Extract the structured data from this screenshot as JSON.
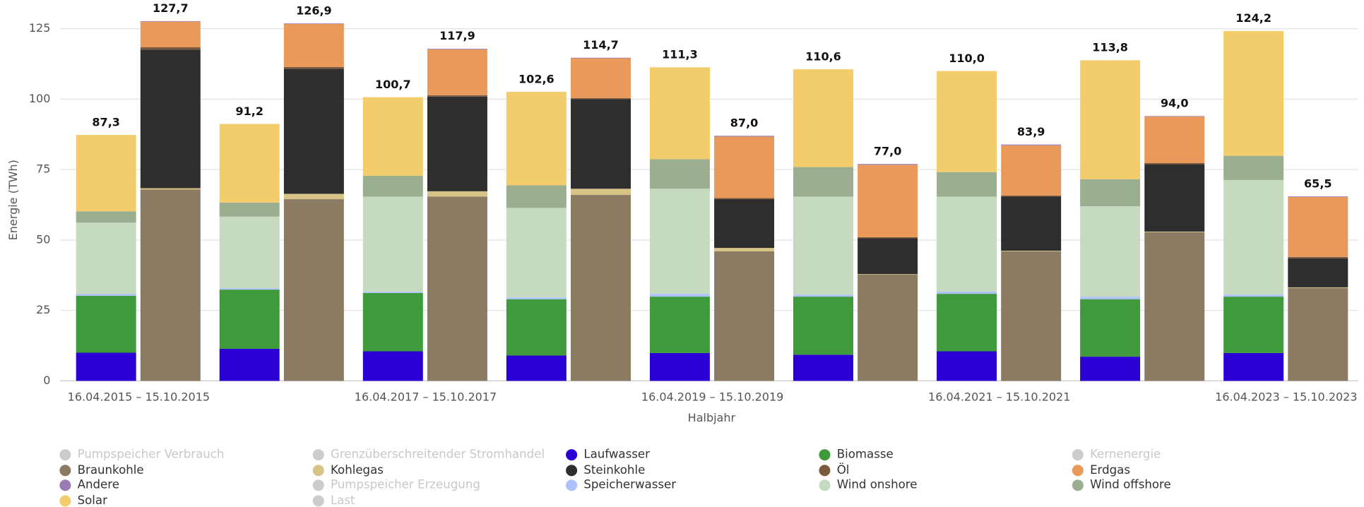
{
  "chart_data": {
    "type": "stacked_bar",
    "y_label": "Energie (TWh)",
    "x_label": "Halbjahr",
    "categories": [
      "16.04.2015 – 15.10.2015",
      null,
      "16.04.2017 – 15.10.2017",
      null,
      "16.04.2019 – 15.10.2019",
      null,
      "16.04.2021 – 15.10.2021",
      null,
      "16.04.2023 – 15.10.2023"
    ],
    "ylim": [
      0,
      125
    ],
    "yticks": [
      0,
      25,
      50,
      75,
      100,
      125
    ],
    "grid": true,
    "legend": "bottom",
    "series": [
      {
        "name": "Laufwasser",
        "color": "#2a00d4",
        "stack": 0,
        "values": [
          10.0,
          11.4,
          10.5,
          9.0,
          9.9,
          9.3,
          10.5,
          8.6,
          9.9
        ]
      },
      {
        "name": "Biomasse",
        "color": "#3e9a3a",
        "stack": 0,
        "values": [
          20.2,
          21.0,
          20.7,
          20.0,
          20.0,
          20.6,
          20.4,
          20.4,
          20.0
        ]
      },
      {
        "name": "Speicherwasser",
        "color": "#adc0ff",
        "stack": 0,
        "values": [
          0.6,
          0.5,
          0.4,
          0.6,
          1.0,
          0.7,
          0.8,
          0.8,
          0.7
        ]
      },
      {
        "name": "Wind onshore",
        "color": "#c6dac0",
        "stack": 0,
        "values": [
          25.4,
          25.4,
          33.8,
          31.8,
          37.3,
          34.8,
          33.7,
          32.2,
          40.7
        ]
      },
      {
        "name": "Wind offshore",
        "color": "#9cae90",
        "stack": 0,
        "values": [
          4.0,
          5.0,
          7.4,
          8.0,
          10.5,
          10.5,
          8.7,
          9.6,
          8.6
        ]
      },
      {
        "name": "Solar",
        "color": "#f3cd6c",
        "stack": 0,
        "values": [
          27.1,
          27.9,
          27.9,
          33.2,
          32.6,
          34.7,
          35.9,
          42.2,
          44.3
        ]
      },
      {
        "name": "Braunkohle",
        "color": "#8b7b63",
        "stack": 1,
        "values": [
          67.9,
          64.5,
          65.4,
          66.0,
          46.0,
          37.7,
          46.0,
          52.8,
          33.0
        ]
      },
      {
        "name": "Kohlegas",
        "color": "#d8c386",
        "stack": 1,
        "values": [
          0.5,
          1.9,
          1.9,
          2.2,
          1.2,
          0.2,
          0.2,
          0.2,
          0.2
        ]
      },
      {
        "name": "Steinkohle",
        "color": "#2e2e2e",
        "stack": 1,
        "values": [
          49.2,
          44.4,
          33.6,
          31.8,
          17.3,
          12.7,
          19.2,
          23.9,
          10.3
        ]
      },
      {
        "name": "Öl",
        "color": "#7b5b3f",
        "stack": 1,
        "values": [
          0.8,
          0.6,
          0.5,
          0.4,
          0.4,
          0.4,
          0.4,
          0.4,
          0.5
        ]
      },
      {
        "name": "Erdgas",
        "color": "#e9995a",
        "stack": 1,
        "values": [
          9.1,
          15.3,
          16.3,
          14.1,
          21.8,
          25.7,
          17.8,
          16.5,
          21.3
        ]
      },
      {
        "name": "Andere",
        "color": "#9a7cb4",
        "stack": 1,
        "values": [
          0.2,
          0.2,
          0.2,
          0.2,
          0.3,
          0.3,
          0.3,
          0.2,
          0.2
        ]
      },
      {
        "name": "Pumpspeicher Verbrauch",
        "color": "#cccccc",
        "visible": false
      },
      {
        "name": "Grenzüberschreitender Stromhandel",
        "color": "#cccccc",
        "visible": false
      },
      {
        "name": "Kernenergie",
        "color": "#cccccc",
        "visible": false
      },
      {
        "name": "Pumpspeicher Erzeugung",
        "color": "#cccccc",
        "visible": false
      },
      {
        "name": "Last",
        "color": "#cccccc",
        "visible": false
      }
    ],
    "totals": [
      {
        "values": [
          87.3,
          91.2,
          100.7,
          102.6,
          111.3,
          110.6,
          110.0,
          113.8,
          124.2
        ],
        "value_labels": [
          "87,3",
          "91,2",
          "100,7",
          "102,6",
          "111,3",
          "110,6",
          "110,0",
          "113,8",
          "124,2"
        ]
      },
      {
        "values": [
          127.7,
          126.9,
          117.9,
          114.7,
          87.0,
          77.0,
          83.9,
          94.0,
          65.5
        ],
        "value_labels": [
          "127,7",
          "126,9",
          "117,9",
          "114,7",
          "87,0",
          "77,0",
          "83,9",
          "94,0",
          "65,5"
        ]
      }
    ]
  }
}
